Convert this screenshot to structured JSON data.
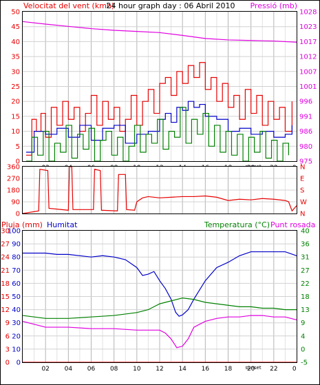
{
  "header": {
    "title": "24 hour graph day : 06 Abril 2010",
    "wind_speed_label": "Velocitat del vent (kmh)",
    "pressure_label": "Pressió (mb)"
  },
  "lower_header": {
    "rain_label": "Pluja (mm)",
    "humidity_label": "Humitat",
    "temperature_label": "Temperatura (°C)",
    "dewpoint_label": "Punt rosada"
  },
  "colors": {
    "red": "#e60000",
    "blue": "#0000c8",
    "green": "#008000",
    "magenta": "#e000e0",
    "grid": "#c8c8c8",
    "frame": "#000000"
  },
  "chart_data": [
    {
      "type": "line",
      "name": "wind-pressure",
      "x_ticks": [
        "02",
        "04",
        "06",
        "08",
        "10",
        "12",
        "14",
        "16",
        "18",
        "20",
        "22",
        "0"
      ],
      "x_annotation": "sunset",
      "xlim": [
        0,
        24
      ],
      "ylim_left": [
        0,
        50
      ],
      "y_ticks_left": [
        "0",
        "5",
        "10",
        "15",
        "20",
        "25",
        "30",
        "35",
        "40",
        "45",
        "50"
      ],
      "ylim_right": [
        975,
        1028
      ],
      "y_ticks_right": [
        "975",
        "980",
        "986",
        "991",
        "996",
        "1001",
        "1007",
        "1012",
        "1017",
        "1023",
        "1028"
      ],
      "series": [
        {
          "color": "red",
          "axis": "left",
          "x": [
            0.3,
            0.8,
            1.2,
            1.6,
            2.0,
            2.5,
            3.0,
            3.5,
            4.0,
            4.5,
            5.0,
            5.5,
            6.0,
            6.5,
            7.0,
            7.5,
            8.0,
            8.5,
            9.0,
            9.5,
            10.0,
            10.5,
            11.0,
            11.5,
            12.0,
            12.5,
            13.0,
            13.5,
            14.0,
            14.5,
            15.0,
            15.5,
            16.0,
            16.5,
            17.0,
            17.5,
            18.0,
            18.5,
            19.0,
            19.5,
            20.0,
            20.5,
            21.0,
            21.5,
            22.0,
            22.5,
            23.0,
            23.6
          ],
          "values": [
            2,
            14,
            10,
            16,
            8,
            18,
            12,
            20,
            14,
            18,
            10,
            16,
            22,
            12,
            20,
            14,
            18,
            10,
            14,
            22,
            12,
            20,
            24,
            16,
            26,
            28,
            22,
            30,
            26,
            32,
            28,
            33,
            24,
            28,
            20,
            26,
            18,
            22,
            14,
            24,
            16,
            22,
            12,
            20,
            14,
            18,
            10,
            20
          ]
        },
        {
          "color": "blue",
          "axis": "left",
          "x": [
            0.3,
            1.0,
            2.0,
            3.0,
            4.0,
            5.0,
            6.0,
            7.0,
            8.0,
            9.0,
            10.0,
            11.0,
            12.0,
            12.5,
            13.0,
            13.5,
            14.0,
            14.5,
            15.0,
            15.5,
            16.0,
            17.0,
            18.0,
            19.0,
            20.0,
            21.0,
            22.0,
            23.0,
            23.6
          ],
          "values": [
            3,
            10,
            9,
            11,
            8,
            12,
            7,
            11,
            12,
            6,
            9,
            10,
            14,
            16,
            13,
            18,
            17,
            20,
            18,
            19,
            15,
            14,
            10,
            11,
            9,
            10,
            8,
            9,
            12
          ]
        },
        {
          "color": "green",
          "axis": "left",
          "x": [
            0.3,
            0.8,
            1.3,
            1.8,
            2.3,
            2.8,
            3.3,
            3.8,
            4.3,
            4.8,
            5.3,
            5.8,
            6.3,
            6.8,
            7.3,
            7.8,
            8.3,
            8.8,
            9.3,
            9.8,
            10.3,
            10.8,
            11.3,
            11.8,
            12.3,
            12.8,
            13.3,
            13.8,
            14.3,
            14.8,
            15.3,
            15.8,
            16.3,
            16.8,
            17.3,
            17.8,
            18.3,
            18.8,
            19.3,
            19.8,
            20.3,
            20.8,
            21.3,
            21.8,
            22.3,
            22.8,
            23.3
          ],
          "values": [
            0,
            8,
            2,
            10,
            0,
            6,
            3,
            12,
            1,
            9,
            4,
            11,
            0,
            7,
            10,
            2,
            8,
            0,
            5,
            12,
            3,
            9,
            6,
            14,
            4,
            10,
            8,
            18,
            6,
            14,
            9,
            16,
            5,
            12,
            3,
            10,
            2,
            9,
            0,
            8,
            3,
            10,
            1,
            7,
            0,
            6,
            2
          ]
        },
        {
          "color": "magenta",
          "axis": "right",
          "x": [
            0,
            2,
            4,
            6,
            8,
            10,
            12,
            14,
            16,
            18,
            20,
            22,
            24
          ],
          "values": [
            1024.5,
            1023.6,
            1022.8,
            1022.0,
            1021.4,
            1021.0,
            1020.6,
            1019.6,
            1018.5,
            1018.0,
            1017.8,
            1017.6,
            1017.2
          ]
        }
      ]
    },
    {
      "type": "line",
      "name": "wind-direction",
      "xlim": [
        0,
        24
      ],
      "ylim_left": [
        0,
        360
      ],
      "y_ticks_left": [
        "0",
        "90",
        "180",
        "270",
        "360"
      ],
      "y_ticks_right": [
        "N",
        "W",
        "S",
        "E",
        "N"
      ],
      "series": [
        {
          "color": "red",
          "axis": "left",
          "x": [
            0,
            1.4,
            1.5,
            2.2,
            2.3,
            4.0,
            4.1,
            4.3,
            4.4,
            6.2,
            6.3,
            6.8,
            6.9,
            8.3,
            8.4,
            9.0,
            9.1,
            9.8,
            10.0,
            10.5,
            11.0,
            12.0,
            13.0,
            14.0,
            15.0,
            16.0,
            17.0,
            18.0,
            19.0,
            20.0,
            21.0,
            22.0,
            23.0,
            23.3,
            23.6,
            24.0
          ],
          "values": [
            0,
            20,
            340,
            330,
            40,
            25,
            360,
            360,
            30,
            30,
            340,
            330,
            25,
            20,
            300,
            300,
            30,
            25,
            90,
            120,
            130,
            120,
            125,
            130,
            130,
            135,
            125,
            100,
            110,
            105,
            115,
            110,
            100,
            90,
            20,
            60
          ]
        }
      ]
    },
    {
      "type": "line",
      "name": "rain-humidity-temperature",
      "x_ticks": [
        "02",
        "04",
        "06",
        "08",
        "10",
        "12",
        "14",
        "16",
        "18",
        "20",
        "22",
        "0"
      ],
      "x_annotation": "sunset",
      "xlim": [
        0,
        24
      ],
      "ylim_rain": [
        0,
        30
      ],
      "y_ticks_rain": [
        "0",
        "3",
        "6",
        "9",
        "12",
        "15",
        "18",
        "21",
        "24",
        "27",
        "30"
      ],
      "ylim_humidity": [
        0,
        100
      ],
      "y_ticks_humidity": [
        "0",
        "10",
        "20",
        "30",
        "40",
        "50",
        "60",
        "70",
        "80",
        "90",
        "100"
      ],
      "ylim_temperature": [
        -5,
        40
      ],
      "y_ticks_temperature": [
        "-5",
        "0",
        "4",
        "9",
        "13",
        "18",
        "22",
        "27",
        "31",
        "36",
        "40"
      ],
      "series": [
        {
          "color": "blue",
          "axis": "humidity",
          "x": [
            0,
            2,
            3,
            4,
            6,
            7,
            8,
            9,
            10,
            10.5,
            11.0,
            11.5,
            12.0,
            12.5,
            13.0,
            13.4,
            13.7,
            14.0,
            14.5,
            15.0,
            15.5,
            16.0,
            17.0,
            18.0,
            19.0,
            20.0,
            21.0,
            22.0,
            23.0,
            24.0
          ],
          "values": [
            83,
            83,
            82,
            82,
            80,
            81,
            80,
            78,
            72,
            66,
            67,
            69,
            62,
            56,
            48,
            38,
            35,
            36,
            40,
            48,
            55,
            62,
            72,
            76,
            81,
            84,
            84,
            84,
            84,
            81
          ]
        },
        {
          "color": "green",
          "axis": "temperature",
          "x": [
            0,
            2,
            4,
            6,
            8,
            10,
            11,
            12,
            13,
            14,
            15,
            16,
            17,
            18,
            19,
            20,
            21,
            22,
            23,
            24
          ],
          "values": [
            11,
            10,
            10,
            10.5,
            11,
            12,
            13,
            15,
            16,
            17,
            16.5,
            15.5,
            15,
            14.5,
            14,
            14,
            13.5,
            13.5,
            13,
            13
          ]
        },
        {
          "color": "magenta",
          "axis": "temperature",
          "x": [
            0,
            2,
            4,
            6,
            8,
            10,
            11,
            12,
            12.5,
            13.0,
            13.5,
            14.0,
            14.5,
            15.0,
            16.0,
            17.0,
            18.0,
            19.0,
            20.0,
            21.0,
            22.0,
            23.0,
            24.0
          ],
          "values": [
            9,
            7,
            7,
            6.5,
            6.5,
            6,
            6,
            6,
            5,
            3,
            0,
            0.5,
            3,
            7,
            9,
            10,
            10.5,
            10.5,
            11,
            11,
            10.5,
            10.5,
            9.5
          ]
        },
        {
          "color": "red",
          "axis": "rain",
          "x": [
            0,
            24
          ],
          "values": [
            0,
            0
          ]
        }
      ]
    }
  ]
}
